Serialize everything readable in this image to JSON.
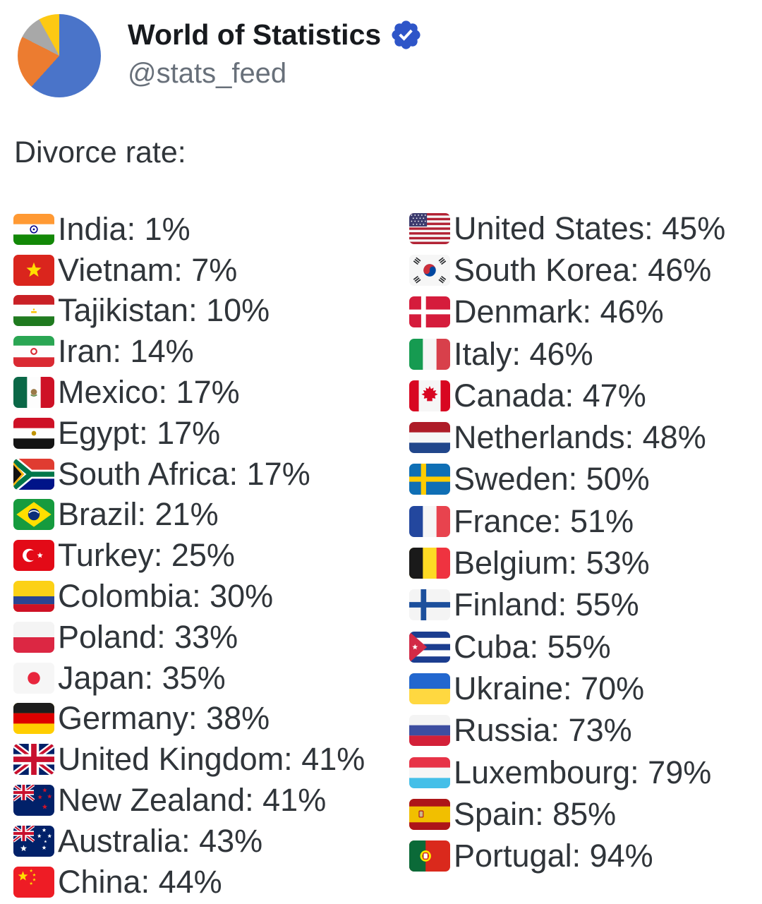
{
  "header": {
    "display_name": "World of Statistics",
    "handle": "@stats_feed",
    "badge": "verified-badge",
    "badge_color": "#2e55c8",
    "avatar_colors": [
      "#4a74c9",
      "#ec7c30",
      "#a8a8a8",
      "#fdc913"
    ],
    "avatar_slices_deg": [
      222,
      75,
      34,
      29
    ]
  },
  "post": {
    "title": "Divorce rate:",
    "label_format": "{name}: {value}"
  },
  "list": {
    "left": [
      {
        "flag": "india",
        "name": "India",
        "value": "1%"
      },
      {
        "flag": "vietnam",
        "name": "Vietnam",
        "value": "7%"
      },
      {
        "flag": "tajikistan",
        "name": "Tajikistan",
        "value": "10%"
      },
      {
        "flag": "iran",
        "name": "Iran",
        "value": "14%"
      },
      {
        "flag": "mexico",
        "name": "Mexico",
        "value": "17%"
      },
      {
        "flag": "egypt",
        "name": "Egypt",
        "value": "17%"
      },
      {
        "flag": "south-africa",
        "name": "South Africa",
        "value": "17%"
      },
      {
        "flag": "brazil",
        "name": "Brazil",
        "value": "21%"
      },
      {
        "flag": "turkey",
        "name": "Turkey",
        "value": "25%"
      },
      {
        "flag": "colombia",
        "name": "Colombia",
        "value": "30%"
      },
      {
        "flag": "poland",
        "name": "Poland",
        "value": "33%"
      },
      {
        "flag": "japan",
        "name": "Japan",
        "value": "35%"
      },
      {
        "flag": "germany",
        "name": "Germany",
        "value": "38%"
      },
      {
        "flag": "united-kingdom",
        "name": "United Kingdom",
        "value": "41%"
      },
      {
        "flag": "new-zealand",
        "name": "New Zealand",
        "value": "41%"
      },
      {
        "flag": "australia",
        "name": "Australia",
        "value": "43%"
      },
      {
        "flag": "china",
        "name": "China",
        "value": "44%"
      }
    ],
    "right": [
      {
        "flag": "united-states",
        "name": "United States",
        "value": "45%"
      },
      {
        "flag": "south-korea",
        "name": "South Korea",
        "value": "46%"
      },
      {
        "flag": "denmark",
        "name": "Denmark",
        "value": "46%"
      },
      {
        "flag": "italy",
        "name": "Italy",
        "value": "46%"
      },
      {
        "flag": "canada",
        "name": "Canada",
        "value": "47%"
      },
      {
        "flag": "netherlands",
        "name": "Netherlands",
        "value": "48%"
      },
      {
        "flag": "sweden",
        "name": "Sweden",
        "value": "50%"
      },
      {
        "flag": "france",
        "name": "France",
        "value": "51%"
      },
      {
        "flag": "belgium",
        "name": "Belgium",
        "value": "53%"
      },
      {
        "flag": "finland",
        "name": "Finland",
        "value": "55%"
      },
      {
        "flag": "cuba",
        "name": "Cuba",
        "value": "55%"
      },
      {
        "flag": "ukraine",
        "name": "Ukraine",
        "value": "70%"
      },
      {
        "flag": "russia",
        "name": "Russia",
        "value": "73%"
      },
      {
        "flag": "luxembourg",
        "name": "Luxembourg",
        "value": "79%"
      },
      {
        "flag": "spain",
        "name": "Spain",
        "value": "85%"
      },
      {
        "flag": "portugal",
        "name": "Portugal",
        "value": "94%"
      }
    ]
  }
}
